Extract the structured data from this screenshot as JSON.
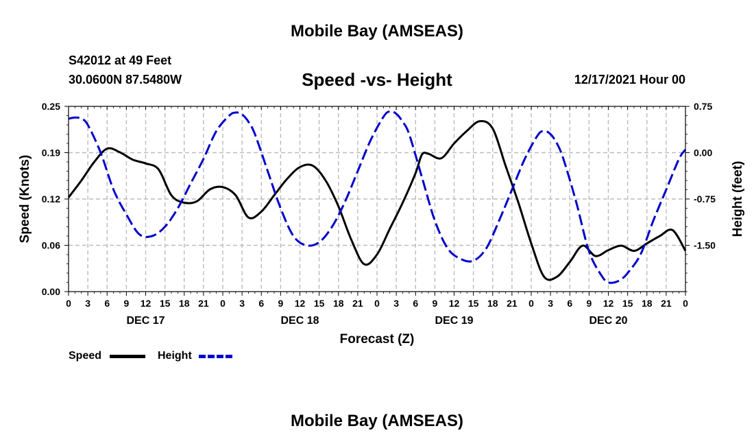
{
  "header": {
    "title": "Mobile Bay (AMSEAS)",
    "station": "S42012 at 49 Feet",
    "coords": "30.0600N  87.5480W",
    "subtitle": "Speed -vs- Height",
    "datetime": "12/17/2021 Hour 00"
  },
  "footer": {
    "title": "Mobile Bay (AMSEAS)"
  },
  "legend": {
    "speed": "Speed",
    "height": "Height"
  },
  "colors": {
    "speed": "#000000",
    "height": "#0000cc",
    "grid": "#bbbbbb"
  },
  "chart_data": {
    "type": "line",
    "title": "Speed -vs- Height",
    "xlabel": "Forecast (Z)",
    "ylabel_left": "Speed (Knots)",
    "ylabel_right": "Height (feet)",
    "xlim": [
      0,
      96
    ],
    "ylim_left": [
      0,
      0.25
    ],
    "ylim_right": [
      -2.25,
      0.75
    ],
    "yticks_left": [
      {
        "v": 0,
        "label": "0.00"
      },
      {
        "v": 0.0625,
        "label": "0.06"
      },
      {
        "v": 0.125,
        "label": "0.12"
      },
      {
        "v": 0.1875,
        "label": "0.19"
      },
      {
        "v": 0.25,
        "label": "0.25"
      }
    ],
    "yticks_right": [
      {
        "v": -1.5,
        "label": "-1.50"
      },
      {
        "v": -0.75,
        "label": "-0.75"
      },
      {
        "v": 0,
        "label": "0.00"
      },
      {
        "v": 0.75,
        "label": "0.75"
      }
    ],
    "xticks": [
      {
        "v": 0,
        "label": "0"
      },
      {
        "v": 3,
        "label": "3"
      },
      {
        "v": 6,
        "label": "6"
      },
      {
        "v": 9,
        "label": "9"
      },
      {
        "v": 12,
        "label": "12"
      },
      {
        "v": 15,
        "label": "15"
      },
      {
        "v": 18,
        "label": "18"
      },
      {
        "v": 21,
        "label": "21"
      },
      {
        "v": 24,
        "label": "0"
      },
      {
        "v": 27,
        "label": "3"
      },
      {
        "v": 30,
        "label": "6"
      },
      {
        "v": 33,
        "label": "9"
      },
      {
        "v": 36,
        "label": "12"
      },
      {
        "v": 39,
        "label": "15"
      },
      {
        "v": 42,
        "label": "18"
      },
      {
        "v": 45,
        "label": "21"
      },
      {
        "v": 48,
        "label": "0"
      },
      {
        "v": 51,
        "label": "3"
      },
      {
        "v": 54,
        "label": "6"
      },
      {
        "v": 57,
        "label": "9"
      },
      {
        "v": 60,
        "label": "12"
      },
      {
        "v": 63,
        "label": "15"
      },
      {
        "v": 66,
        "label": "18"
      },
      {
        "v": 69,
        "label": "21"
      },
      {
        "v": 72,
        "label": "0"
      },
      {
        "v": 75,
        "label": "3"
      },
      {
        "v": 78,
        "label": "6"
      },
      {
        "v": 81,
        "label": "9"
      },
      {
        "v": 84,
        "label": "12"
      },
      {
        "v": 87,
        "label": "15"
      },
      {
        "v": 90,
        "label": "18"
      },
      {
        "v": 93,
        "label": "21"
      },
      {
        "v": 96,
        "label": "0"
      }
    ],
    "day_labels": [
      {
        "v": 12,
        "label": "DEC 17"
      },
      {
        "v": 36,
        "label": "DEC 18"
      },
      {
        "v": 60,
        "label": "DEC 19"
      },
      {
        "v": 84,
        "label": "DEC 20"
      }
    ],
    "series": [
      {
        "name": "Speed",
        "axis": "left",
        "x": [
          0,
          2,
          4,
          6,
          8,
          10,
          12,
          14,
          16,
          18,
          20,
          22,
          24,
          26,
          28,
          30,
          32,
          34,
          36,
          38,
          40,
          42,
          44,
          46,
          48,
          50,
          52,
          54,
          55,
          56,
          58,
          60,
          62,
          64,
          66,
          68,
          70,
          72,
          74,
          76,
          78,
          80,
          82,
          84,
          86,
          88,
          90,
          92,
          94,
          96
        ],
        "y": [
          0.127,
          0.15,
          0.175,
          0.193,
          0.188,
          0.178,
          0.173,
          0.165,
          0.13,
          0.12,
          0.122,
          0.138,
          0.141,
          0.13,
          0.1,
          0.108,
          0.13,
          0.152,
          0.168,
          0.17,
          0.15,
          0.115,
          0.07,
          0.037,
          0.05,
          0.085,
          0.12,
          0.16,
          0.185,
          0.186,
          0.18,
          0.2,
          0.217,
          0.23,
          0.22,
          0.17,
          0.12,
          0.065,
          0.02,
          0.02,
          0.04,
          0.062,
          0.048,
          0.056,
          0.062,
          0.055,
          0.065,
          0.075,
          0.083,
          0.055
        ]
      },
      {
        "name": "Height",
        "axis": "right",
        "x": [
          0,
          1,
          2,
          3,
          5,
          7,
          9,
          11,
          13,
          15,
          17,
          19,
          21,
          23,
          25,
          26,
          27,
          28,
          29,
          31,
          33,
          35,
          37,
          39,
          41,
          43,
          45,
          47,
          49,
          50,
          51,
          52,
          53,
          55,
          57,
          59,
          61,
          63,
          65,
          67,
          69,
          71,
          73,
          74,
          75,
          76,
          77,
          79,
          81,
          83,
          84,
          85,
          86,
          87,
          89,
          91,
          93,
          95,
          96
        ],
        "y": [
          0.55,
          0.57,
          0.55,
          0.45,
          0.0,
          -0.6,
          -1.0,
          -1.32,
          -1.35,
          -1.2,
          -0.9,
          -0.5,
          -0.1,
          0.35,
          0.6,
          0.65,
          0.62,
          0.5,
          0.3,
          -0.3,
          -0.9,
          -1.35,
          -1.5,
          -1.45,
          -1.2,
          -0.8,
          -0.3,
          0.2,
          0.58,
          0.67,
          0.63,
          0.5,
          0.3,
          -0.4,
          -1.1,
          -1.55,
          -1.72,
          -1.75,
          -1.55,
          -1.1,
          -0.6,
          -0.1,
          0.28,
          0.35,
          0.3,
          0.15,
          -0.1,
          -0.8,
          -1.6,
          -2.0,
          -2.1,
          -2.1,
          -2.05,
          -1.95,
          -1.65,
          -1.1,
          -0.6,
          -0.1,
          0.05
        ]
      }
    ]
  }
}
